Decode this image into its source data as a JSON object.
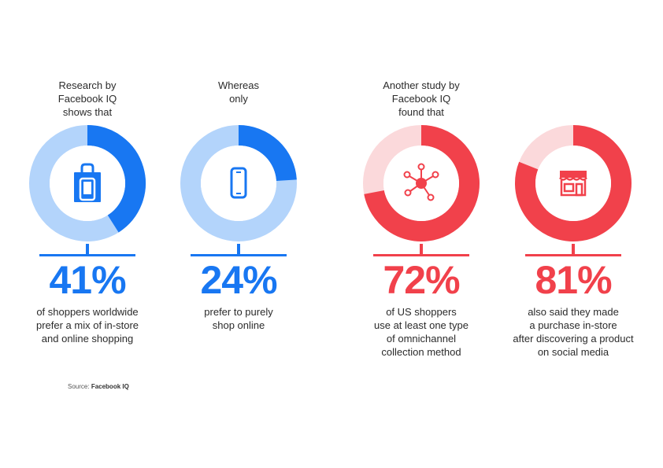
{
  "chart_data": {
    "type": "pie",
    "series": [
      {
        "intro": "Research by\nFacebook IQ\nshows that",
        "value": 41,
        "value_label": "41%",
        "description": "of shoppers worldwide\nprefer a mix of in-store\nand online shopping",
        "icon": "shopping-bag-phone-icon",
        "color": "#1877F2",
        "track_color": "#B3D4FB"
      },
      {
        "intro": "Whereas\nonly",
        "value": 24,
        "value_label": "24%",
        "description": "prefer to purely\nshop online",
        "icon": "smartphone-icon",
        "color": "#1877F2",
        "track_color": "#B3D4FB"
      },
      {
        "intro": "Another study by\nFacebook IQ\nfound that",
        "value": 72,
        "value_label": "72%",
        "description": "of US shoppers\nuse at least one type\nof omnichannel\ncollection method",
        "icon": "network-hub-icon",
        "color": "#F1414B",
        "track_color": "#FBD9DB"
      },
      {
        "intro": "",
        "value": 81,
        "value_label": "81%",
        "description": "also said they made\na purchase in-store\nafter discovering a product\non social media",
        "icon": "storefront-icon",
        "color": "#F1414B",
        "track_color": "#FBD9DB"
      }
    ],
    "max": 100
  },
  "source": {
    "label": "Source:",
    "name": "Facebook IQ"
  }
}
